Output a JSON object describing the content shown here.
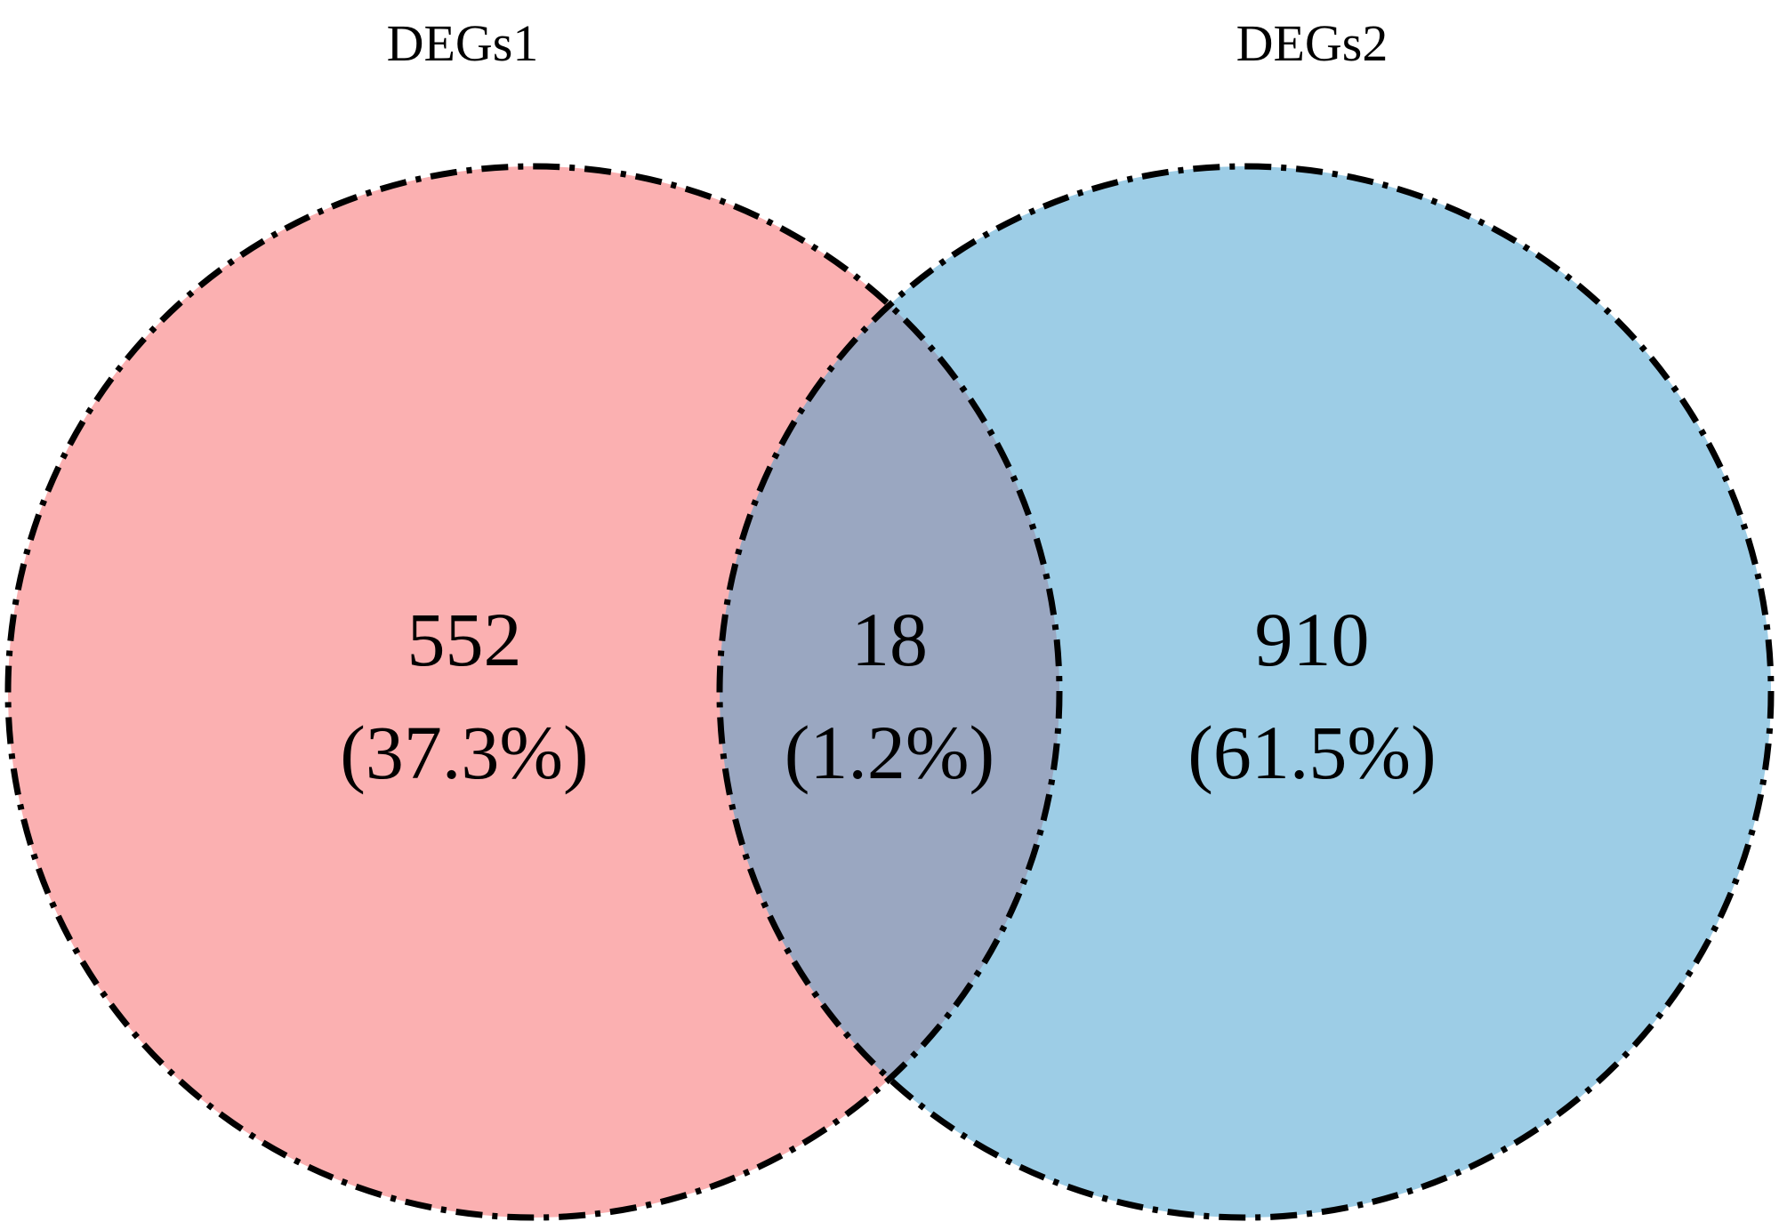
{
  "diagram": {
    "type": "venn",
    "sets": [
      {
        "id": "left",
        "label": "DEGs1",
        "color": "#fbb0b1"
      },
      {
        "id": "right",
        "label": "DEGs2",
        "color": "#9dcde6"
      }
    ],
    "overlap_color": "#9aa7c1",
    "outline_color": "#000000",
    "regions": [
      {
        "id": "left-only",
        "count": "552",
        "percent": "(37.3%)"
      },
      {
        "id": "intersection",
        "count": "18",
        "percent": "(1.2%)"
      },
      {
        "id": "right-only",
        "count": "910",
        "percent": "(61.5%)"
      }
    ]
  }
}
